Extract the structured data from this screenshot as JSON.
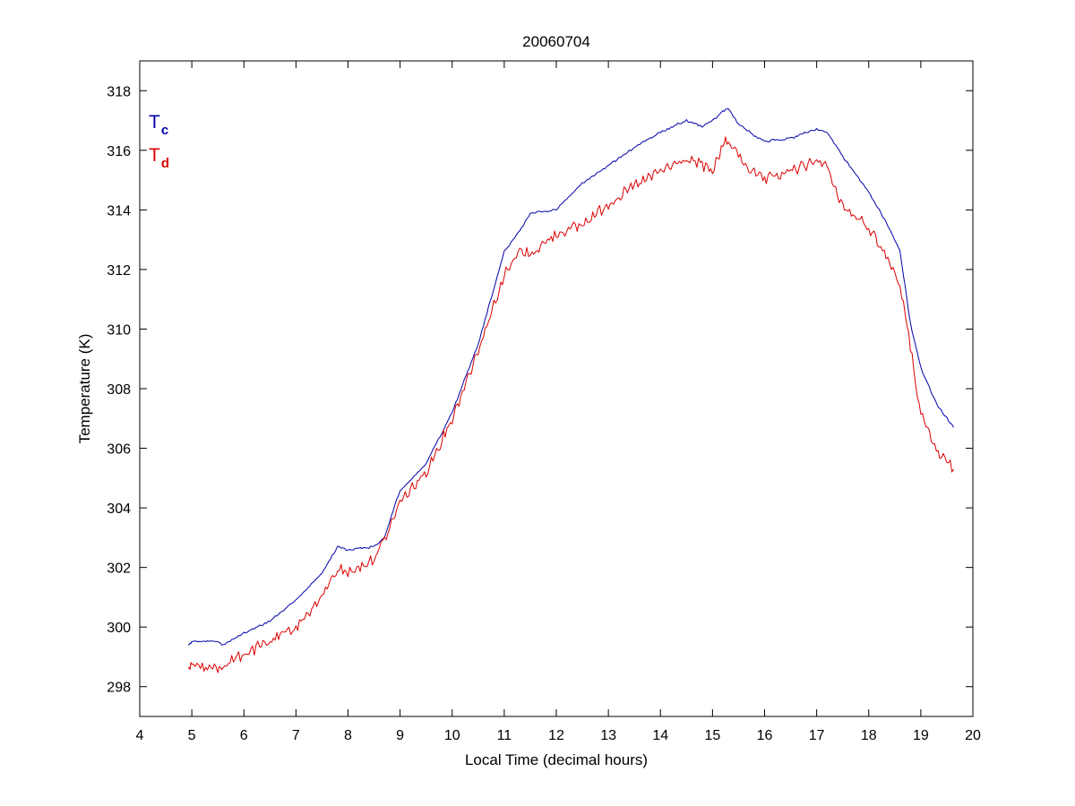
{
  "chart_data": {
    "type": "line",
    "title": "20060704",
    "xlabel": "Local Time (decimal hours)",
    "ylabel": "Temperature (K)",
    "xlim": [
      4,
      20
    ],
    "ylim": [
      297,
      319
    ],
    "xticks": [
      4,
      5,
      6,
      7,
      8,
      9,
      10,
      11,
      12,
      13,
      14,
      15,
      16,
      17,
      18,
      19,
      20
    ],
    "yticks": [
      298,
      300,
      302,
      304,
      306,
      308,
      310,
      312,
      314,
      316,
      318
    ],
    "grid": false,
    "legend_position": "top-left",
    "series": [
      {
        "name": "T",
        "subscript": "c",
        "color": "#0000aa",
        "x": [
          4.93,
          5.0,
          5.5,
          5.6,
          6.0,
          6.5,
          7.0,
          7.5,
          7.8,
          8.0,
          8.5,
          8.7,
          9.0,
          9.5,
          10.0,
          10.5,
          11.0,
          11.3,
          11.5,
          12.0,
          12.5,
          13.0,
          13.5,
          14.0,
          14.5,
          14.8,
          15.0,
          15.2,
          15.3,
          15.5,
          15.8,
          16.0,
          16.5,
          16.8,
          17.0,
          17.2,
          17.5,
          18.0,
          18.3,
          18.6,
          18.8,
          19.0,
          19.3,
          19.63
        ],
        "y": [
          299.4,
          299.5,
          299.5,
          299.4,
          299.8,
          300.2,
          300.9,
          301.8,
          302.7,
          302.6,
          302.7,
          303.0,
          304.6,
          305.5,
          307.2,
          309.5,
          312.6,
          313.3,
          313.9,
          314.0,
          314.9,
          315.5,
          316.1,
          316.6,
          317.0,
          316.8,
          317.0,
          317.3,
          317.4,
          316.9,
          316.5,
          316.3,
          316.4,
          316.6,
          316.7,
          316.6,
          315.8,
          314.6,
          313.7,
          312.6,
          310.2,
          308.7,
          307.5,
          306.7
        ]
      },
      {
        "name": "T",
        "subscript": "d",
        "color": "#dd0000",
        "x": [
          4.93,
          5.0,
          5.5,
          5.6,
          6.0,
          6.5,
          7.0,
          7.5,
          7.8,
          8.0,
          8.5,
          8.7,
          9.0,
          9.5,
          10.0,
          10.5,
          11.0,
          11.3,
          11.5,
          12.0,
          12.5,
          13.0,
          13.5,
          14.0,
          14.5,
          14.8,
          15.0,
          15.2,
          15.3,
          15.5,
          15.8,
          16.0,
          16.5,
          16.8,
          17.0,
          17.2,
          17.5,
          18.0,
          18.3,
          18.6,
          18.8,
          19.0,
          19.3,
          19.63
        ],
        "y": [
          298.6,
          298.7,
          298.6,
          298.7,
          299.1,
          299.5,
          300.0,
          301.0,
          302.0,
          301.8,
          302.3,
          302.9,
          304.2,
          305.2,
          307.0,
          309.3,
          311.8,
          312.6,
          312.5,
          313.2,
          313.5,
          314.2,
          314.8,
          315.3,
          315.7,
          315.5,
          315.3,
          316.2,
          316.3,
          315.8,
          315.2,
          315.0,
          315.3,
          315.5,
          315.7,
          315.4,
          314.1,
          313.4,
          312.6,
          311.5,
          309.4,
          307.1,
          305.9,
          305.3
        ]
      }
    ]
  }
}
